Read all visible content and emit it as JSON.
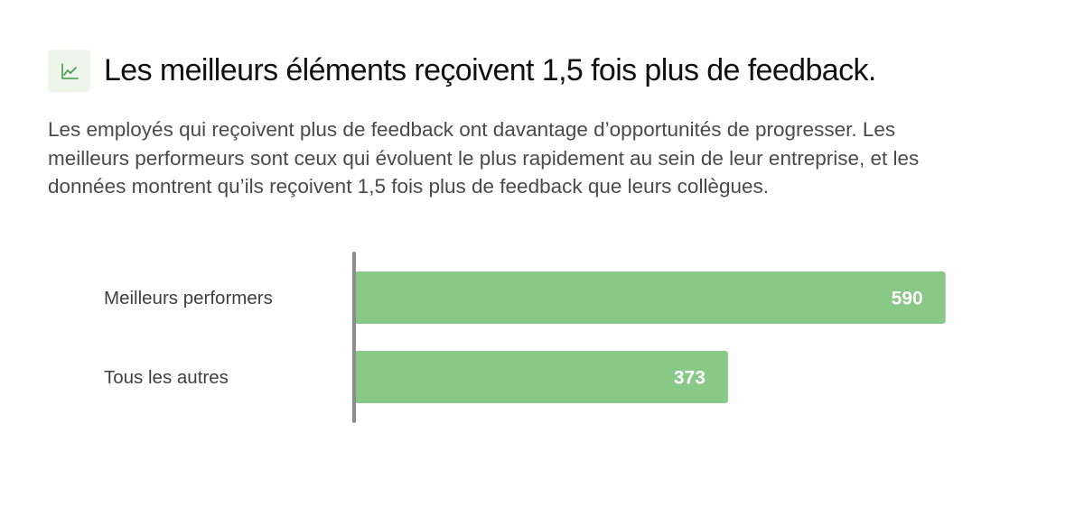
{
  "header": {
    "icon": "trending-up-icon",
    "title": "Les meilleurs éléments reçoivent 1,5 fois plus de feedback."
  },
  "description": "Les employés qui reçoivent plus de feedback ont davantage d’opportunités de progresser. Les meilleurs performeurs sont ceux qui évoluent le plus rapidement au sein de leur entreprise, et les données montrent qu’ils reçoivent 1,5 fois plus de feedback que leurs collègues.",
  "colors": {
    "bar": "#88c988",
    "axis": "#8c8c8c",
    "icon_bg": "#eef6ec",
    "icon_stroke": "#3f9a45"
  },
  "chart_data": {
    "type": "bar",
    "orientation": "horizontal",
    "categories": [
      "Meilleurs performers",
      "Tous les autres"
    ],
    "values": [
      590,
      373
    ],
    "xlim": [
      0,
      620
    ],
    "grid": false,
    "legend": "none"
  }
}
